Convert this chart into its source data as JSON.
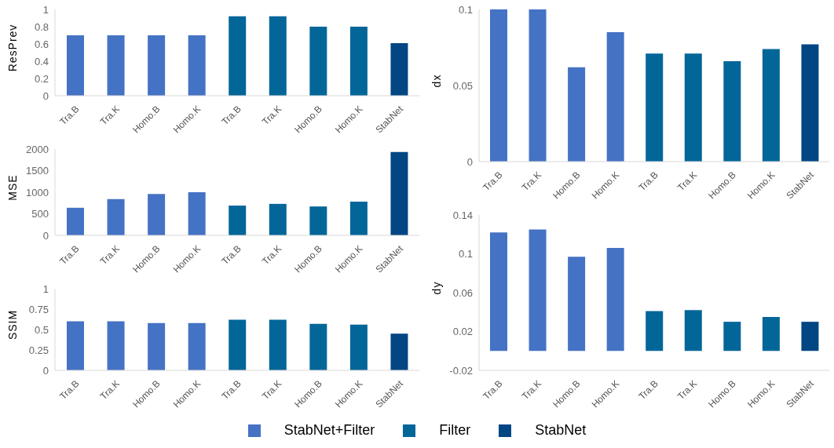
{
  "chart_data": [
    {
      "type": "bar",
      "ylabel": "ResPrev",
      "categories": [
        "Tra.B",
        "Tra.K",
        "Homo.B",
        "Homo.K",
        "Tra.B",
        "Tra.K",
        "Homo.B",
        "Homo.K",
        "StabNet"
      ],
      "stacked": true,
      "ylim": [
        0,
        1
      ],
      "yticks": [
        0,
        0.2,
        0.4,
        0.6,
        0.8,
        1
      ],
      "legend": "bottom",
      "series": [
        {
          "name": "StabNet+Filter",
          "color": "#4472c4",
          "values": [
            0.7,
            0.7,
            0.7,
            0.7,
            null,
            null,
            null,
            null,
            null
          ]
        },
        {
          "name": "Filter",
          "color": "#036699",
          "values": [
            null,
            null,
            null,
            null,
            0.92,
            0.92,
            0.8,
            0.8,
            null
          ]
        },
        {
          "name": "StabNet",
          "color": "#024683",
          "values": [
            null,
            null,
            null,
            null,
            null,
            null,
            null,
            null,
            0.61
          ]
        }
      ]
    },
    {
      "type": "bar",
      "ylabel": "MSE",
      "categories": [
        "Tra.B",
        "Tra.K",
        "Homo.B",
        "Homo.K",
        "Tra.B",
        "Tra.K",
        "Homo.B",
        "Homo.K",
        "StabNet"
      ],
      "stacked": true,
      "ylim": [
        0,
        2000
      ],
      "yticks": [
        0,
        500,
        1000,
        1500,
        2000
      ],
      "series": [
        {
          "color": "#4472c4",
          "values": [
            640,
            840,
            960,
            1000,
            null,
            null,
            null,
            null,
            null
          ]
        },
        {
          "color": "#036699",
          "values": [
            null,
            null,
            null,
            null,
            690,
            730,
            670,
            780,
            null
          ]
        },
        {
          "color": "#024683",
          "values": [
            null,
            null,
            null,
            null,
            null,
            null,
            null,
            null,
            1930
          ]
        }
      ]
    },
    {
      "type": "bar",
      "ylabel": "SSIM",
      "categories": [
        "Tra.B",
        "Tra.K",
        "Homo.B",
        "Homo.K",
        "Tra.B",
        "Tra.K",
        "Homo.B",
        "Homo.K",
        "StabNet"
      ],
      "stacked": true,
      "ylim": [
        0,
        1
      ],
      "yticks": [
        0,
        0.25,
        0.5,
        0.75,
        1
      ],
      "series": [
        {
          "color": "#4472c4",
          "values": [
            0.6,
            0.6,
            0.58,
            0.58,
            null,
            null,
            null,
            null,
            null
          ]
        },
        {
          "color": "#036699",
          "values": [
            null,
            null,
            null,
            null,
            0.62,
            0.62,
            0.57,
            0.56,
            null
          ]
        },
        {
          "color": "#024683",
          "values": [
            null,
            null,
            null,
            null,
            null,
            null,
            null,
            null,
            0.45
          ]
        }
      ]
    },
    {
      "type": "bar",
      "ylabel": "dx",
      "categories": [
        "Tra.B",
        "Tra.K",
        "Homo.B",
        "Homo.K",
        "Tra.B",
        "Tra.K",
        "Homo.B",
        "Homo.K",
        "StabNet"
      ],
      "stacked": true,
      "ylim": [
        0,
        0.1
      ],
      "yticks": [
        0,
        0.05,
        0.1
      ],
      "series": [
        {
          "color": "#4472c4",
          "values": [
            0.1,
            0.1,
            0.062,
            0.085,
            null,
            null,
            null,
            null,
            null
          ]
        },
        {
          "color": "#036699",
          "values": [
            null,
            null,
            null,
            null,
            0.071,
            0.071,
            0.066,
            0.074,
            null
          ]
        },
        {
          "color": "#024683",
          "values": [
            null,
            null,
            null,
            null,
            null,
            null,
            null,
            null,
            0.077
          ]
        }
      ]
    },
    {
      "type": "bar",
      "ylabel": "dy",
      "categories": [
        "Tra.B",
        "Tra.K",
        "Homo.B",
        "Homo.K",
        "Tra.B",
        "Tra.K",
        "Homo.B",
        "Homo.K",
        "StabNet"
      ],
      "stacked": true,
      "ylim": [
        -0.02,
        0.14
      ],
      "yticks": [
        -0.02,
        0.02,
        0.06,
        0.1,
        0.14
      ],
      "series": [
        {
          "color": "#4472c4",
          "values": [
            0.122,
            0.125,
            0.097,
            0.106,
            null,
            null,
            null,
            null,
            null
          ]
        },
        {
          "color": "#036699",
          "values": [
            null,
            null,
            null,
            null,
            0.041,
            0.042,
            0.03,
            0.035,
            null
          ]
        },
        {
          "color": "#024683",
          "values": [
            null,
            null,
            null,
            null,
            null,
            null,
            null,
            null,
            0.03
          ]
        }
      ]
    }
  ]
}
